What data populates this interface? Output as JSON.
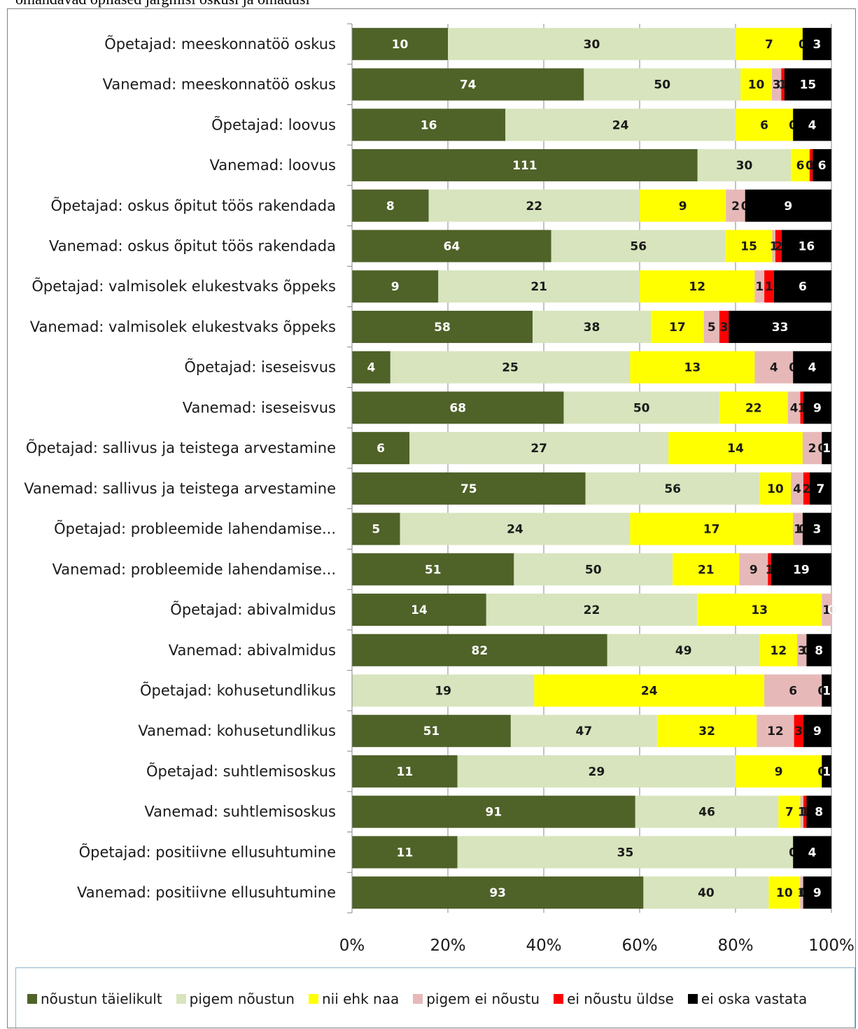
{
  "title": "omandavad õpilased järgmisi oskusi ja omadusi",
  "chart_data": {
    "type": "bar",
    "orientation": "horizontal",
    "stacked": "percent",
    "xlim": [
      0,
      100
    ],
    "xticks": [
      "0%",
      "20%",
      "40%",
      "60%",
      "80%",
      "100%"
    ],
    "grid": true,
    "legend_position": "bottom",
    "categories": [
      "Õpetajad:   meeskonnatöö oskus",
      "Vanemad:  meeskonnatöö oskus",
      "Õpetajad:   loovus",
      "Vanemad:  loovus",
      "Õpetajad:   oskus õpitut töös rakendada",
      "Vanemad:  oskus õpitut töös rakendada",
      "Õpetajad:   valmisolek elukestvaks õppeks",
      "Vanemad:  valmisolek elukestvaks õppeks",
      "Õpetajad:   iseseisvus",
      "Vanemad:  iseseisvus",
      "Õpetajad:   sallivus ja teistega arvestamine",
      "Vanemad:  sallivus ja teistega arvestamine",
      "Õpetajad:   probleemide lahendamise...",
      "Vanemad:  probleemide lahendamise...",
      "Õpetajad:   abivalmidus",
      "Vanemad:  abivalmidus",
      "Õpetajad:   kohusetundlikus",
      "Vanemad:  kohusetundlikus",
      "Õpetajad:   suhtlemisoskus",
      "Vanemad: suhtlemisoskus",
      "Õpetajad:  positiivne ellusuhtumine",
      "Vanemad: positiivne ellusuhtumine"
    ],
    "series": [
      {
        "name": "nõustun täielikult",
        "color": "#4f6228",
        "label_color": "#ffffff",
        "values": [
          10,
          74,
          16,
          111,
          8,
          64,
          9,
          58,
          4,
          68,
          6,
          75,
          5,
          51,
          14,
          82,
          0,
          51,
          11,
          91,
          11,
          93
        ]
      },
      {
        "name": "pigem nõustun",
        "color": "#d7e4bd",
        "label_color": "#1a1a1a",
        "values": [
          30,
          50,
          24,
          30,
          22,
          56,
          21,
          38,
          25,
          50,
          27,
          56,
          24,
          50,
          22,
          49,
          19,
          47,
          29,
          46,
          35,
          40
        ]
      },
      {
        "name": "nii ehk naa",
        "color": "#ffff00",
        "label_color": "#1a1a1a",
        "values": [
          7,
          10,
          6,
          6,
          9,
          15,
          12,
          17,
          13,
          22,
          14,
          10,
          17,
          21,
          13,
          12,
          24,
          32,
          9,
          7,
          0,
          10
        ]
      },
      {
        "name": "pigem ei nõustu",
        "color": "#e6b9b8",
        "label_color": "#1a1a1a",
        "values": [
          0,
          3,
          0,
          0,
          2,
          1,
          1,
          5,
          4,
          4,
          2,
          4,
          1,
          9,
          1,
          3,
          6,
          12,
          0,
          1,
          0,
          1
        ]
      },
      {
        "name": "ei nõustu üldse",
        "color": "#ff0000",
        "label_color": "#1a1a1a",
        "values": [
          0,
          1,
          0,
          1,
          0,
          2,
          1,
          3,
          0,
          1,
          0,
          2,
          0,
          1,
          0,
          0,
          0,
          3,
          0,
          1,
          0,
          0
        ]
      },
      {
        "name": "ei oska vastata",
        "color": "#000000",
        "label_color": "#ffffff",
        "values": [
          3,
          15,
          4,
          6,
          9,
          16,
          6,
          33,
          4,
          9,
          1,
          7,
          3,
          19,
          0,
          8,
          1,
          9,
          1,
          8,
          4,
          9
        ]
      }
    ]
  }
}
